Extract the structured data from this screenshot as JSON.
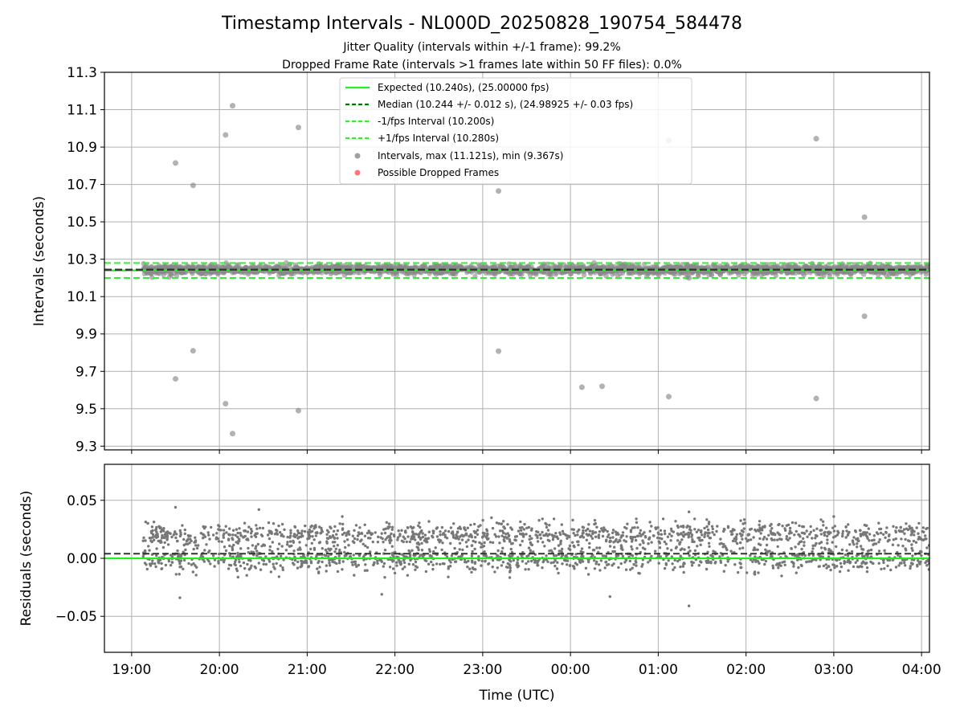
{
  "title": "Timestamp Intervals - NL000D_20250828_190754_584478",
  "subtitle_lines": [
    "Jitter Quality (intervals within +/-1 frame): 99.2%",
    "Dropped Frame Rate (intervals >1 frames late within 50 FF files): 0.0%"
  ],
  "colors": {
    "expected": "#22ee22",
    "median": "#007700",
    "bounds": "#33ee33",
    "points": "#888888",
    "dropped": "#ff5555",
    "grid": "#b0b0b0",
    "median_band": "#333333"
  },
  "chart_data": [
    {
      "type": "scatter",
      "ylabel": "Intervals (seconds)",
      "ylim": [
        9.28,
        11.3
      ],
      "yticks": [
        "11.3",
        "11.1",
        "10.9",
        "10.7",
        "10.5",
        "10.3",
        "10.1",
        "9.9",
        "9.7",
        "9.5",
        "9.3"
      ],
      "ytick_values": [
        11.3,
        11.1,
        10.9,
        10.7,
        10.5,
        10.3,
        10.1,
        9.9,
        9.7,
        9.5,
        9.3
      ],
      "x_unit": "hours since 19:00 UTC",
      "xlim": [
        -0.31,
        9.09
      ],
      "grid": true,
      "legend_position": "top-center",
      "legend": [
        "Expected (10.240s), (25.00000 fps)",
        "Median (10.244 +/- 0.012 s), (24.98925 +/- 0.03 fps)",
        "-1/fps Interval (10.200s)",
        "+1/fps Interval (10.280s)",
        "Intervals, max (11.121s), min (9.367s)",
        "Possible Dropped Frames"
      ],
      "series": [
        {
          "name": "Expected (10.240s), (25.00000 fps)",
          "y": 10.24,
          "style": "solid"
        },
        {
          "name": "Median (10.244 +/- 0.012 s), (24.98925 +/- 0.03 fps)",
          "y": 10.244,
          "style": "dashed"
        },
        {
          "name": "-1/fps Interval (10.200s)",
          "y": 10.2,
          "style": "dashed"
        },
        {
          "name": "+1/fps Interval (10.280s)",
          "y": 10.28,
          "style": "dashed"
        }
      ],
      "dense_band": {
        "x_range": [
          0.13,
          9.09
        ],
        "y_range": [
          10.22,
          10.27
        ]
      },
      "outliers": [
        {
          "x": 0.5,
          "y": 10.815
        },
        {
          "x": 0.5,
          "y": 9.66
        },
        {
          "x": 0.7,
          "y": 10.695
        },
        {
          "x": 0.7,
          "y": 9.81
        },
        {
          "x": 1.07,
          "y": 10.965
        },
        {
          "x": 1.07,
          "y": 9.527
        },
        {
          "x": 1.15,
          "y": 11.121
        },
        {
          "x": 1.15,
          "y": 9.367
        },
        {
          "x": 1.9,
          "y": 11.005
        },
        {
          "x": 1.9,
          "y": 9.49
        },
        {
          "x": 4.18,
          "y": 10.665
        },
        {
          "x": 4.18,
          "y": 9.808
        },
        {
          "x": 5.13,
          "y": 9.615
        },
        {
          "x": 5.36,
          "y": 9.62
        },
        {
          "x": 6.12,
          "y": 10.935
        },
        {
          "x": 6.12,
          "y": 9.565
        },
        {
          "x": 6.33,
          "y": 10.27
        },
        {
          "x": 6.35,
          "y": 10.2
        },
        {
          "x": 7.8,
          "y": 10.945
        },
        {
          "x": 7.8,
          "y": 9.555
        },
        {
          "x": 8.35,
          "y": 10.525
        },
        {
          "x": 8.35,
          "y": 9.995
        }
      ]
    },
    {
      "type": "scatter",
      "ylabel": "Residuals (seconds)",
      "xlabel": "Time (UTC)",
      "ylim": [
        -0.081,
        0.081
      ],
      "yticks": [
        "0.05",
        "0.00",
        "−0.05"
      ],
      "ytick_values": [
        0.05,
        0.0,
        -0.05
      ],
      "xticks": [
        "19:00",
        "20:00",
        "21:00",
        "22:00",
        "23:00",
        "00:00",
        "01:00",
        "02:00",
        "03:00",
        "04:00"
      ],
      "xtick_values": [
        0,
        1,
        2,
        3,
        4,
        5,
        6,
        7,
        8,
        9
      ],
      "xlim": [
        -0.31,
        9.09
      ],
      "grid": true,
      "series": [
        {
          "name": "Expected residual",
          "y": 0.0,
          "style": "solid"
        },
        {
          "name": "Median residual",
          "y": 0.004,
          "style": "dashed"
        }
      ],
      "residual_bands": {
        "x_range": [
          0.13,
          9.09
        ],
        "upper_center": 0.02,
        "lower_center": 0.0,
        "spread": 0.012
      },
      "residual_outliers": [
        {
          "x": 0.5,
          "y": 0.044
        },
        {
          "x": 0.55,
          "y": -0.034
        },
        {
          "x": 1.45,
          "y": 0.042
        },
        {
          "x": 2.4,
          "y": 0.036
        },
        {
          "x": 2.85,
          "y": -0.031
        },
        {
          "x": 4.1,
          "y": 0.035
        },
        {
          "x": 5.45,
          "y": -0.033
        },
        {
          "x": 6.35,
          "y": 0.04
        },
        {
          "x": 6.35,
          "y": -0.041
        },
        {
          "x": 8.0,
          "y": 0.036
        },
        {
          "x": 5.75,
          "y": 0.034
        }
      ]
    }
  ]
}
